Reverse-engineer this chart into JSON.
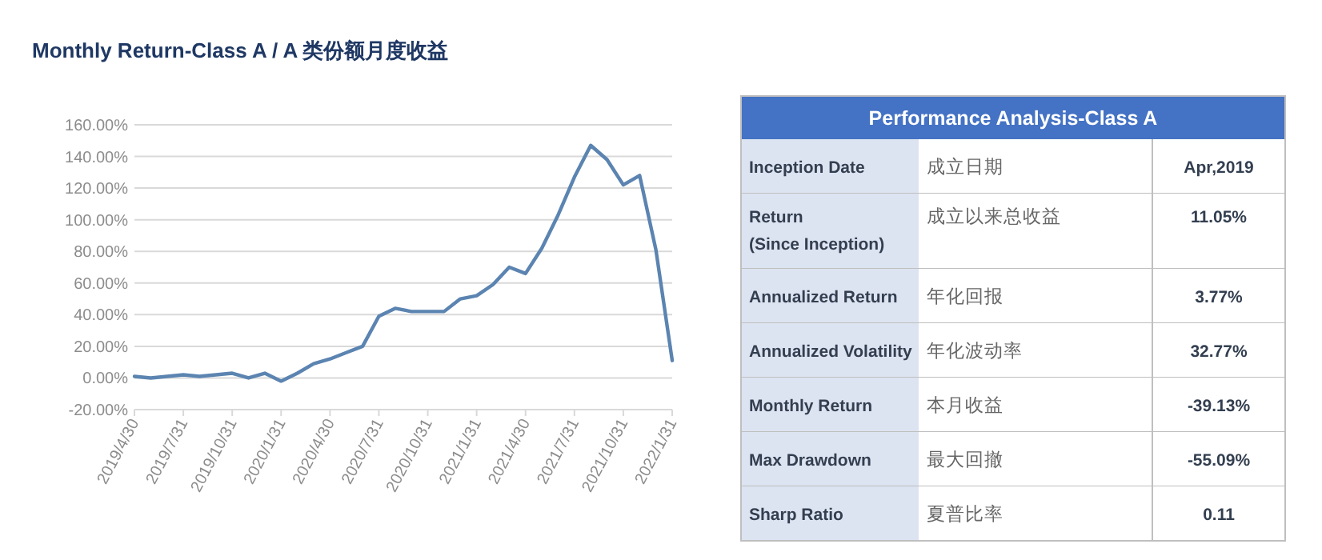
{
  "chart_data": [
    {
      "type": "line",
      "title": "Monthly Return-Class A / A 类份额月度收益",
      "categories": [
        "2019/4/30",
        null,
        null,
        "2019/7/31",
        null,
        null,
        "2019/10/31",
        null,
        null,
        "2020/1/31",
        null,
        null,
        "2020/4/30",
        null,
        null,
        "2020/7/31",
        null,
        null,
        "2020/10/31",
        null,
        null,
        "2021/1/31",
        null,
        null,
        "2021/4/30",
        null,
        null,
        "2021/7/31",
        null,
        null,
        "2021/10/31",
        null,
        null,
        "2022/1/31"
      ],
      "series": [
        {
          "color": "#5b84b1",
          "values": [
            1,
            0,
            1,
            2,
            1,
            2,
            3,
            0,
            3,
            -2,
            3,
            9,
            12,
            16,
            20,
            39,
            44,
            42,
            42,
            42,
            50,
            52,
            59,
            70,
            66,
            82,
            103,
            127,
            147,
            138,
            122,
            128,
            81,
            11
          ]
        }
      ],
      "ylim": [
        -20,
        160
      ],
      "yticks": [
        {
          "value": -20,
          "label": "-20.00%"
        },
        {
          "value": 0,
          "label": "0.00%"
        },
        {
          "value": 20,
          "label": "20.00%"
        },
        {
          "value": 40,
          "label": "40.00%"
        },
        {
          "value": 60,
          "label": "60.00%"
        },
        {
          "value": 80,
          "label": "80.00%"
        },
        {
          "value": 100,
          "label": "100.00%"
        },
        {
          "value": 120,
          "label": "120.00%"
        },
        {
          "value": 140,
          "label": "140.00%"
        },
        {
          "value": 160,
          "label": "160.00%"
        }
      ],
      "grid": "y"
    },
    {
      "type": "other",
      "title": "Performance Analysis-Class A",
      "annotations": [
        "Inception Date",
        "成立日期",
        "Apr,2019",
        "Return\n(Since Inception)",
        "成立以来总收益",
        "11.05%",
        "Annualized Return",
        "年化回报",
        "3.77%",
        "Annualized Volatility",
        "年化波动率",
        "32.77%",
        "Monthly Return",
        "本月收益",
        "-39.13%",
        "Max Drawdown",
        "最大回撤",
        "-55.09%",
        "Sharp Ratio",
        "夏普比率",
        "0.11"
      ]
    }
  ]
}
